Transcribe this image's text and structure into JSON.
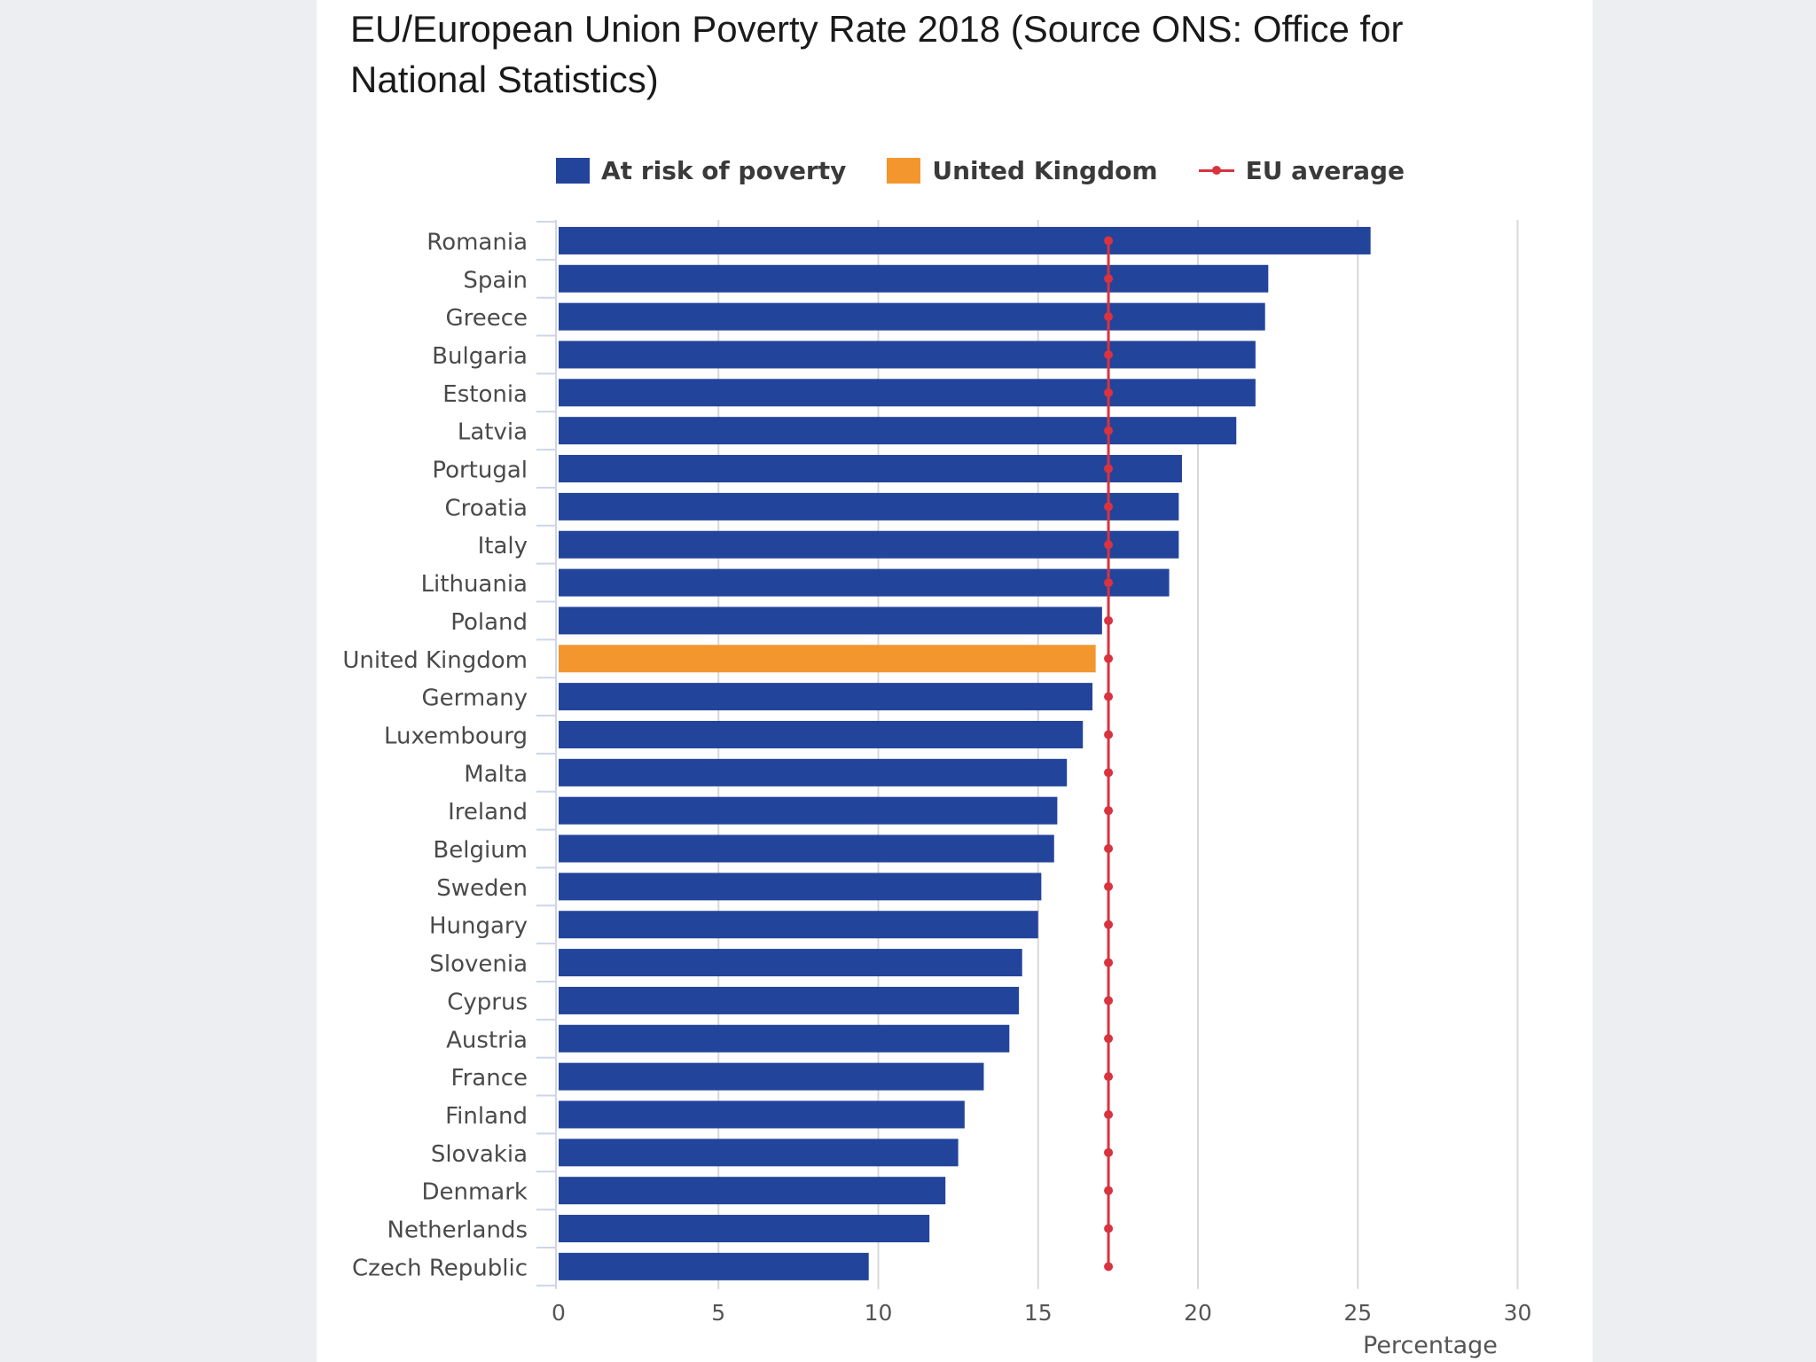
{
  "title": "EU/European Union Poverty Rate 2018 (Source ONS: Office for National Statistics)",
  "legend": {
    "series1": "At risk of poverty",
    "series2": "United Kingdom",
    "series3": "EU average"
  },
  "colors": {
    "bar": "#23449b",
    "highlight": "#f3962d",
    "average": "#d9333f",
    "grid": "#d8d8d8",
    "text": "#4a4a4a"
  },
  "chart_data": {
    "type": "bar",
    "orientation": "horizontal",
    "title": "EU/European Union Poverty Rate 2018 (Source ONS: Office for National Statistics)",
    "xlabel": "Percentage",
    "ylabel": "",
    "xlim": [
      0,
      30
    ],
    "xticks": [
      0,
      5,
      10,
      15,
      20,
      25,
      30
    ],
    "grid": true,
    "legend_position": "top",
    "categories": [
      "Romania",
      "Spain",
      "Greece",
      "Bulgaria",
      "Estonia",
      "Latvia",
      "Portugal",
      "Croatia",
      "Italy",
      "Lithuania",
      "Poland",
      "United Kingdom",
      "Germany",
      "Luxembourg",
      "Malta",
      "Ireland",
      "Belgium",
      "Sweden",
      "Hungary",
      "Slovenia",
      "Cyprus",
      "Austria",
      "France",
      "Finland",
      "Slovakia",
      "Denmark",
      "Netherlands",
      "Czech Republic"
    ],
    "series": [
      {
        "name": "At risk of poverty",
        "values": [
          25.4,
          22.2,
          22.1,
          21.8,
          21.8,
          21.2,
          19.5,
          19.4,
          19.4,
          19.1,
          17.0,
          16.8,
          16.7,
          16.4,
          15.9,
          15.6,
          15.5,
          15.1,
          15.0,
          14.5,
          14.4,
          14.1,
          13.3,
          12.7,
          12.5,
          12.1,
          11.6,
          9.7
        ]
      },
      {
        "name": "United Kingdom",
        "highlight_category": "United Kingdom"
      },
      {
        "name": "EU average",
        "type": "line",
        "value": 17.2
      }
    ]
  }
}
